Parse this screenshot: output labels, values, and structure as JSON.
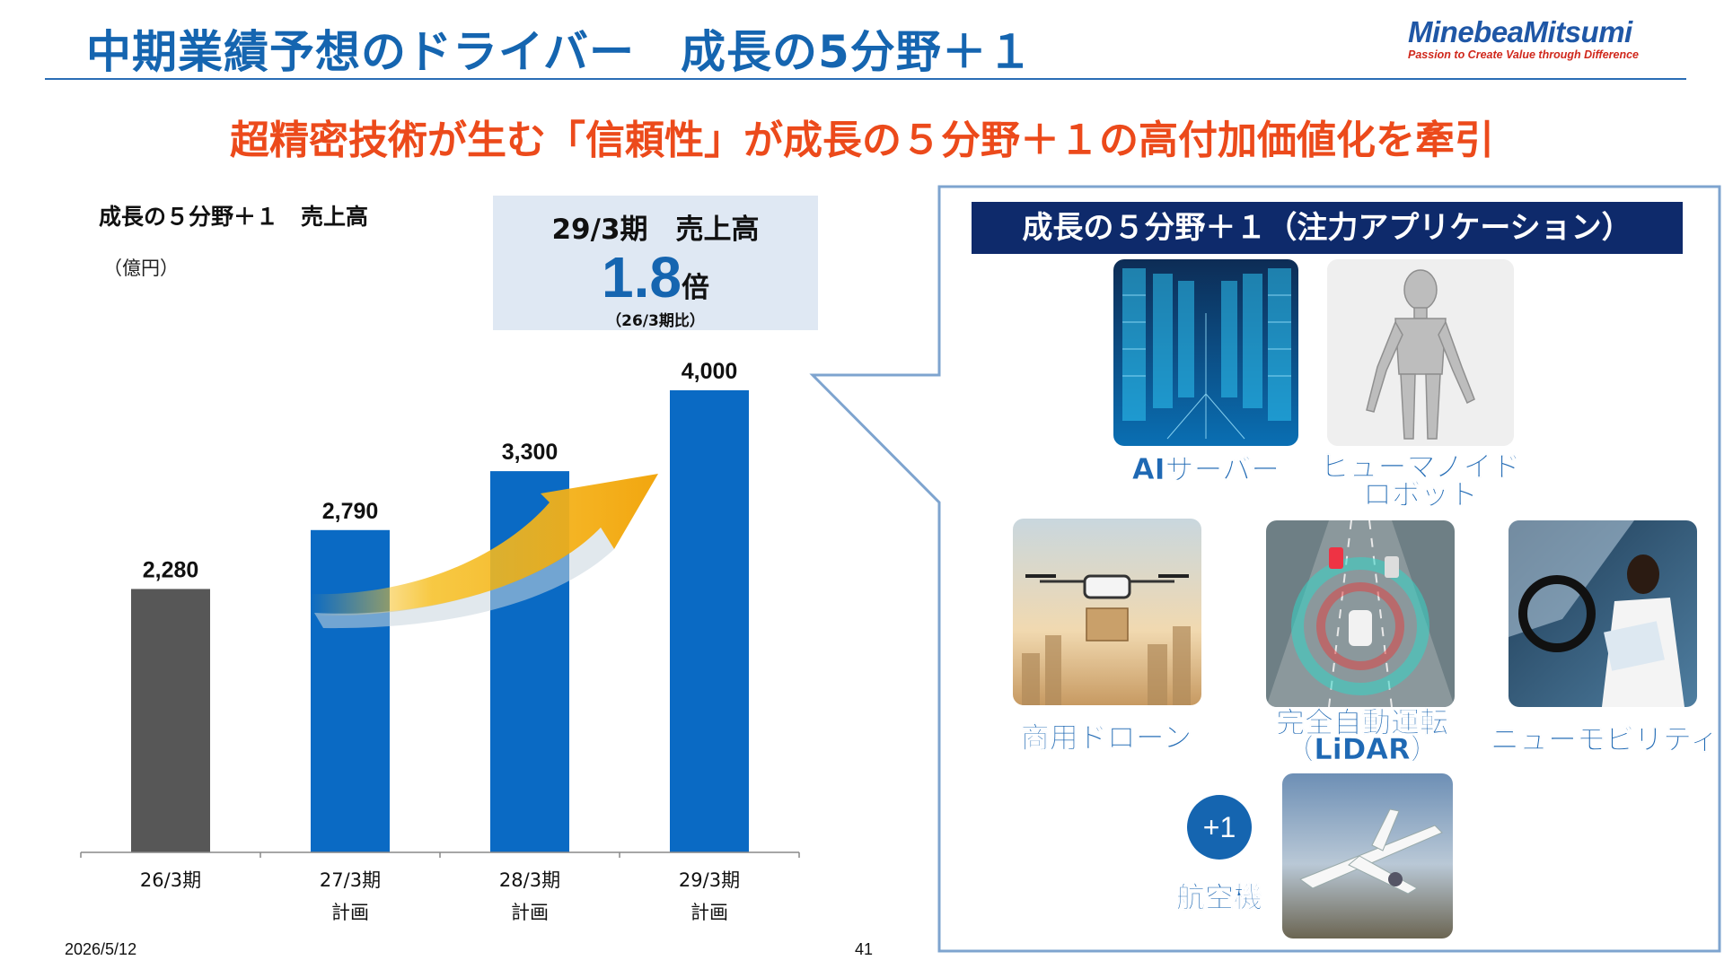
{
  "header": {
    "title": "中期業績予想のドライバー　成長の5分野＋１",
    "logo_name": "MinebeaMitsumi",
    "logo_tagline": "Passion to Create Value through Difference"
  },
  "subtitle": "超精密技術が生む「信頼性」が成長の５分野＋１の高付加価値化を牽引",
  "chart_data": {
    "type": "bar",
    "title": "成長の５分野＋１　売上高",
    "ylabel": "（億円）",
    "categories": [
      {
        "line1": "26/3期",
        "line2": ""
      },
      {
        "line1": "27/3期",
        "line2": "計画"
      },
      {
        "line1": "28/3期",
        "line2": "計画"
      },
      {
        "line1": "29/3期",
        "line2": "計画"
      }
    ],
    "values": [
      2280,
      2790,
      3300,
      4000
    ],
    "value_labels": [
      "2,280",
      "2,790",
      "3,300",
      "4,000"
    ],
    "colors": [
      "#575757",
      "#0a6ac4",
      "#0a6ac4",
      "#0a6ac4"
    ],
    "ylim": [
      0,
      4000
    ],
    "grid": false,
    "annotation": "growth arrow from 27/3期 to 29/3期"
  },
  "callout": {
    "line1": "29/3期　売上高",
    "big_value": "1.8",
    "big_unit": "倍",
    "note": "（26/3期比）"
  },
  "panel": {
    "heading": "成長の５分野＋１（注力アプリケーション）",
    "items": [
      {
        "label": "AIサーバー"
      },
      {
        "label": "ヒューマノイド\nロボット"
      },
      {
        "label": "商用ドローン"
      },
      {
        "label": "完全自動運転\n（LiDAR）"
      },
      {
        "label": "ニューモビリティ"
      },
      {
        "label": "航空機"
      }
    ],
    "plus_badge": "+1"
  },
  "footer": {
    "date": "2026/5/12",
    "page": "41"
  },
  "colors": {
    "accent": "#1565b0",
    "subtitle": "#ec4a1b",
    "panel_head": "#0e2a6b",
    "bar_blue": "#0a6ac4",
    "bar_gray": "#575757"
  }
}
